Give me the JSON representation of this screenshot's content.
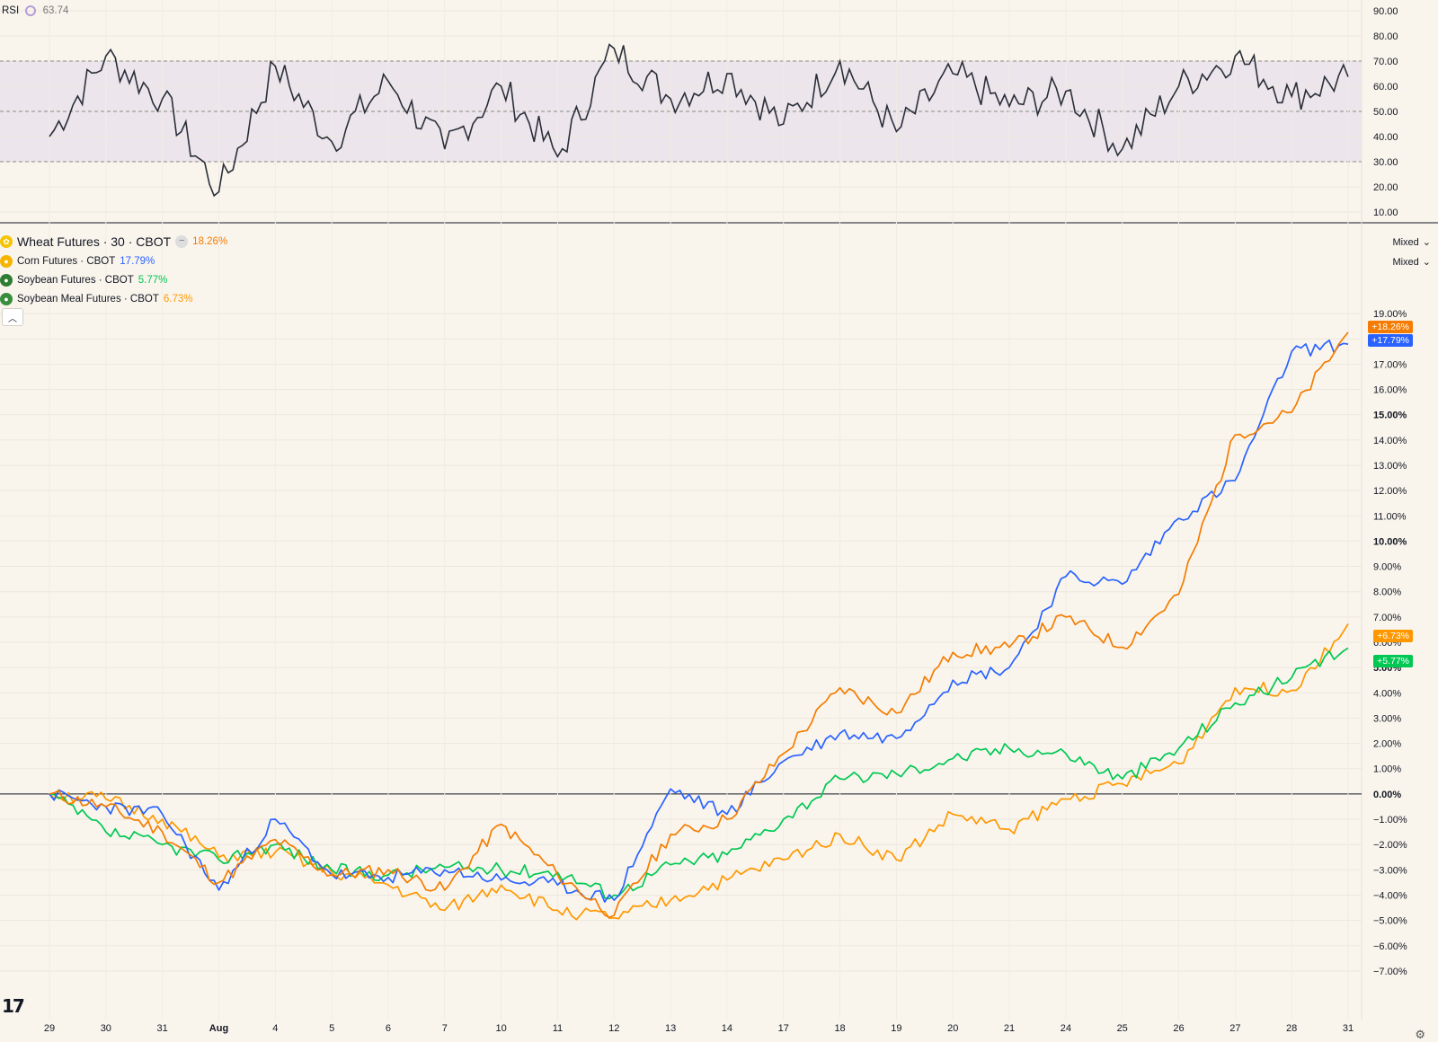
{
  "rsi": {
    "label": "RSI",
    "value": "63.74",
    "value_color": "#7a7a7a",
    "line_color": "#2a2e39",
    "band_fill": "#ece5ec",
    "ticks": [
      "90.00",
      "80.00",
      "70.00",
      "60.00",
      "50.00",
      "40.00",
      "30.00",
      "20.00",
      "10.00"
    ],
    "levels": [
      70,
      50,
      30
    ]
  },
  "legend": {
    "main": {
      "name": "Wheat Futures · 30 · CBOT",
      "pct": "18.26%",
      "color": "#f57c00",
      "icon": "wheat-icon"
    },
    "compare": [
      {
        "name": "Corn Futures · CBOT",
        "pct": "17.79%",
        "color": "#2962ff",
        "icon": "corn-icon"
      },
      {
        "name": "Soybean Futures · CBOT",
        "pct": "5.77%",
        "color": "#00c853",
        "icon": "soybean-icon"
      },
      {
        "name": "Soybean Meal Futures · CBOT",
        "pct": "6.73%",
        "color": "#ff9800",
        "icon": "soybean-meal-icon"
      }
    ],
    "scale_mode_1": "Mixed",
    "scale_mode_2": "Mixed"
  },
  "price_tags": [
    {
      "text": "+18.26%",
      "color": "#f57c00"
    },
    {
      "text": "+17.79%",
      "color": "#2962ff"
    },
    {
      "text": "+6.73%",
      "color": "#ff9800"
    },
    {
      "text": "+5.77%",
      "color": "#00c853"
    }
  ],
  "x_axis_ticks": [
    "29",
    "30",
    "31",
    "Aug",
    "4",
    "5",
    "6",
    "7",
    "10",
    "11",
    "12",
    "13",
    "14",
    "17",
    "18",
    "19",
    "20",
    "21",
    "24",
    "25",
    "26",
    "27",
    "28",
    "31"
  ],
  "chart_data": [
    {
      "type": "line",
      "title": "RSI",
      "x": [
        "29",
        "30",
        "31",
        "Aug",
        "4",
        "5",
        "6",
        "7",
        "10",
        "11",
        "12",
        "13",
        "14",
        "17",
        "18",
        "19",
        "20",
        "21",
        "24",
        "25",
        "26",
        "27",
        "28",
        "31"
      ],
      "series": [
        {
          "name": "RSI",
          "values": [
            40,
            72,
            55,
            18,
            68,
            38,
            62,
            35,
            60,
            32,
            75,
            55,
            65,
            45,
            70,
            42,
            65,
            52,
            58,
            35,
            60,
            72,
            56,
            63.74
          ]
        }
      ],
      "ylim": [
        10,
        90
      ],
      "reference_lines": [
        70,
        50,
        30
      ],
      "grid": true
    },
    {
      "type": "line",
      "title": "Wheat Futures · 30 · CBOT",
      "x": [
        "29",
        "30",
        "31",
        "Aug",
        "4",
        "5",
        "6",
        "7",
        "10",
        "11",
        "12",
        "13",
        "14",
        "17",
        "18",
        "19",
        "20",
        "21",
        "24",
        "25",
        "26",
        "27",
        "28",
        "31"
      ],
      "series": [
        {
          "name": "Wheat Futures · 30 · CBOT",
          "color": "#f57c00",
          "values": [
            0,
            -0.5,
            -1.5,
            -3.5,
            -1.8,
            -3.2,
            -3.0,
            -3.8,
            -1.2,
            -3.2,
            -4.8,
            -1.6,
            -1.0,
            1.6,
            4.2,
            3.2,
            5.6,
            5.8,
            7.0,
            5.8,
            7.9,
            14.2,
            15.1,
            18.26
          ]
        },
        {
          "name": "Corn Futures · CBOT",
          "color": "#2962ff",
          "values": [
            0,
            -0.5,
            -0.8,
            -3.8,
            -1.0,
            -3.2,
            -3.3,
            -3.0,
            -3.4,
            -3.6,
            -4.2,
            0.2,
            -0.8,
            1.3,
            2.4,
            2.2,
            4.5,
            5.0,
            8.6,
            8.3,
            10.9,
            12.4,
            17.5,
            17.79
          ]
        },
        {
          "name": "Soybean Futures · CBOT",
          "color": "#00c853",
          "values": [
            0,
            -1.5,
            -2.0,
            -2.6,
            -2.0,
            -3.0,
            -3.2,
            -2.9,
            -3.0,
            -3.1,
            -4.0,
            -2.8,
            -2.4,
            -1.0,
            0.6,
            0.8,
            1.4,
            1.8,
            1.6,
            0.6,
            1.8,
            3.6,
            4.6,
            5.77
          ]
        },
        {
          "name": "Soybean Meal Futures · CBOT",
          "color": "#ff9800",
          "values": [
            0,
            -0.2,
            -1.0,
            -2.5,
            -2.3,
            -3.1,
            -3.6,
            -4.6,
            -3.6,
            -4.6,
            -4.9,
            -4.2,
            -3.4,
            -2.6,
            -1.6,
            -2.6,
            -0.8,
            -1.4,
            -0.2,
            0.4,
            1.2,
            4.2,
            4.1,
            6.73
          ]
        }
      ],
      "y_ticks": [
        "19.00%",
        "18.00%",
        "17.00%",
        "16.00%",
        "15.00%",
        "14.00%",
        "13.00%",
        "12.00%",
        "11.00%",
        "10.00%",
        "9.00%",
        "8.00%",
        "7.00%",
        "6.00%",
        "5.00%",
        "4.00%",
        "3.00%",
        "2.00%",
        "1.00%",
        "0.00%",
        "−1.00%",
        "−2.00%",
        "−3.00%",
        "−4.00%",
        "−5.00%",
        "−6.00%",
        "−7.00%"
      ],
      "ylim": [
        -7.5,
        19.5
      ],
      "grid": true
    }
  ]
}
